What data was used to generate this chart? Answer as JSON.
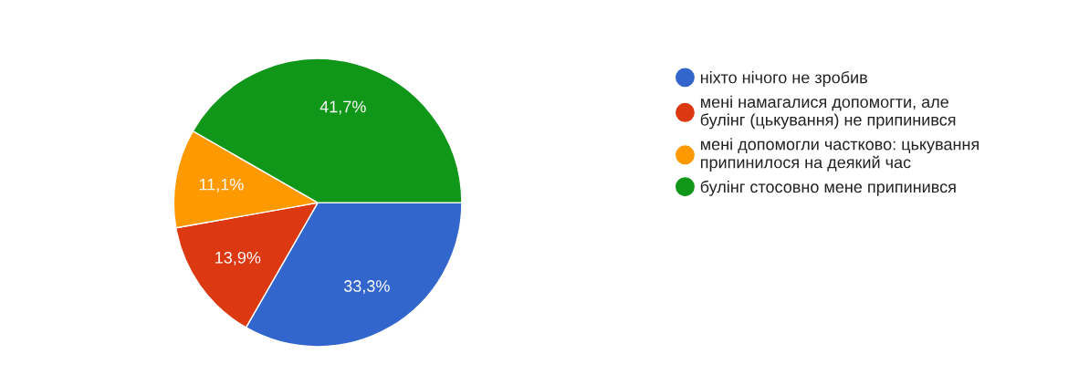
{
  "chart_data": {
    "type": "pie",
    "categories": [
      "ніхто нічого не зробив",
      "мені намагалися допомогти, але\nбулінг (цькування) не припинився",
      "мені допомогли частково: цькування\nприпинилося на деякий час",
      "булінг стосовно мене припинився"
    ],
    "values": [
      33.3,
      13.9,
      11.1,
      41.7
    ],
    "value_labels": [
      "33,3%",
      "13,9%",
      "11,1%",
      "41,7%"
    ],
    "colors": [
      "#3366cc",
      "#dc3912",
      "#ff9900",
      "#109618"
    ],
    "legend": "right"
  }
}
